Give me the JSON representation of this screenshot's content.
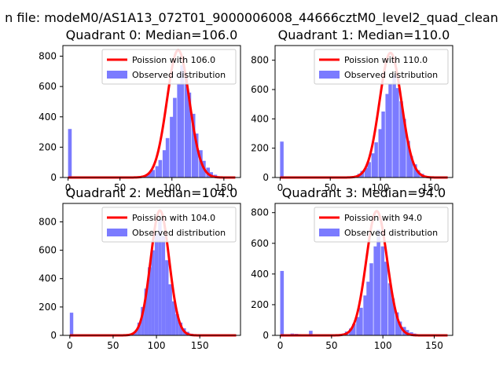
{
  "figure": {
    "suptitle": "n file: modeM0/AS1A13_072T01_9000006008_44666cztM0_level2_quad_clean"
  },
  "colors": {
    "hist": "#7b7bff",
    "poisson": "#ff0000",
    "axes": "#000000"
  },
  "chart_data": [
    {
      "type": "bar",
      "title": "Quadrant 0: Median=106.0",
      "median": 106.0,
      "xlim": [
        -5,
        166
      ],
      "ylim": [
        0,
        870
      ],
      "xticks": [
        0,
        50,
        100,
        150
      ],
      "yticks": [
        0,
        200,
        400,
        600,
        800
      ],
      "legend_position": "upper-right",
      "series": [
        {
          "name": "Poission with 106.0",
          "kind": "line",
          "mu": 106.0,
          "peak": 840
        },
        {
          "name": "Observed distribution",
          "kind": "hist",
          "bin_width": 3.5,
          "bins": [
            [
              0,
              320
            ],
            [
              70,
              5
            ],
            [
              74,
              15
            ],
            [
              77,
              30
            ],
            [
              80,
              50
            ],
            [
              84,
              75
            ],
            [
              87,
              115
            ],
            [
              91,
              180
            ],
            [
              94,
              260
            ],
            [
              98,
              400
            ],
            [
              101,
              525
            ],
            [
              105,
              620
            ],
            [
              108,
              740
            ],
            [
              112,
              660
            ],
            [
              115,
              560
            ],
            [
              119,
              420
            ],
            [
              122,
              290
            ],
            [
              126,
              180
            ],
            [
              129,
              110
            ],
            [
              133,
              65
            ],
            [
              136,
              35
            ],
            [
              140,
              18
            ],
            [
              143,
              8
            ],
            [
              147,
              4
            ],
            [
              150,
              2
            ]
          ]
        }
      ]
    },
    {
      "type": "bar",
      "title": "Quadrant 1: Median=110.0",
      "median": 110.0,
      "xlim": [
        -5,
        172
      ],
      "ylim": [
        0,
        900
      ],
      "xticks": [
        0,
        50,
        100,
        150
      ],
      "yticks": [
        0,
        200,
        400,
        600,
        800
      ],
      "legend_position": "upper-right",
      "series": [
        {
          "name": "Poission with 110.0",
          "kind": "line",
          "mu": 110.0,
          "peak": 850
        },
        {
          "name": "Observed distribution",
          "kind": "hist",
          "bin_width": 3.5,
          "bins": [
            [
              0,
              245
            ],
            [
              70,
              5
            ],
            [
              74,
              10
            ],
            [
              77,
              25
            ],
            [
              80,
              45
            ],
            [
              84,
              65
            ],
            [
              87,
              105
            ],
            [
              91,
              165
            ],
            [
              94,
              240
            ],
            [
              98,
              330
            ],
            [
              101,
              450
            ],
            [
              105,
              570
            ],
            [
              108,
              640
            ],
            [
              112,
              700
            ],
            [
              115,
              610
            ],
            [
              119,
              520
            ],
            [
              122,
              400
            ],
            [
              126,
              250
            ],
            [
              129,
              145
            ],
            [
              133,
              90
            ],
            [
              136,
              50
            ],
            [
              140,
              25
            ],
            [
              143,
              12
            ],
            [
              147,
              6
            ],
            [
              150,
              3
            ]
          ]
        }
      ]
    },
    {
      "type": "bar",
      "title": "Quadrant 2: Median=104.0",
      "median": 104.0,
      "xlim": [
        -8,
        197
      ],
      "ylim": [
        0,
        930
      ],
      "xticks": [
        0,
        50,
        100,
        150
      ],
      "yticks": [
        0,
        200,
        400,
        600,
        800
      ],
      "legend_position": "upper-right",
      "series": [
        {
          "name": "Poission with 104.0",
          "kind": "line",
          "mu": 104.0,
          "peak": 880
        },
        {
          "name": "Observed distribution",
          "kind": "hist",
          "bin_width": 4,
          "bins": [
            [
              0,
              160
            ],
            [
              66,
              4
            ],
            [
              70,
              12
            ],
            [
              74,
              30
            ],
            [
              78,
              90
            ],
            [
              82,
              200
            ],
            [
              86,
              330
            ],
            [
              90,
              480
            ],
            [
              94,
              600
            ],
            [
              98,
              720
            ],
            [
              102,
              820
            ],
            [
              106,
              700
            ],
            [
              110,
              530
            ],
            [
              114,
              360
            ],
            [
              118,
              240
            ],
            [
              122,
              150
            ],
            [
              126,
              90
            ],
            [
              130,
              50
            ],
            [
              134,
              25
            ],
            [
              138,
              12
            ],
            [
              142,
              6
            ],
            [
              146,
              3
            ]
          ]
        }
      ]
    },
    {
      "type": "bar",
      "title": "Quadrant 3: Median=94.0",
      "median": 94.0,
      "xlim": [
        -5,
        168
      ],
      "ylim": [
        0,
        860
      ],
      "xticks": [
        0,
        50,
        100,
        150
      ],
      "yticks": [
        0,
        200,
        400,
        600,
        800
      ],
      "legend_position": "upper-right",
      "series": [
        {
          "name": "Poission with 94.0",
          "kind": "line",
          "mu": 94.0,
          "peak": 810
        },
        {
          "name": "Observed distribution",
          "kind": "hist",
          "bin_width": 3.5,
          "bins": [
            [
              0,
              420
            ],
            [
              10,
              12
            ],
            [
              14,
              10
            ],
            [
              17,
              8
            ],
            [
              21,
              6
            ],
            [
              28,
              30
            ],
            [
              56,
              6
            ],
            [
              60,
              12
            ],
            [
              63,
              25
            ],
            [
              67,
              45
            ],
            [
              70,
              75
            ],
            [
              74,
              120
            ],
            [
              77,
              180
            ],
            [
              81,
              260
            ],
            [
              84,
              350
            ],
            [
              87,
              470
            ],
            [
              91,
              580
            ],
            [
              94,
              690
            ],
            [
              98,
              580
            ],
            [
              101,
              480
            ],
            [
              105,
              340
            ],
            [
              108,
              240
            ],
            [
              112,
              150
            ],
            [
              115,
              90
            ],
            [
              119,
              55
            ],
            [
              122,
              35
            ],
            [
              126,
              20
            ],
            [
              129,
              12
            ],
            [
              133,
              6
            ],
            [
              136,
              3
            ]
          ]
        }
      ]
    }
  ]
}
